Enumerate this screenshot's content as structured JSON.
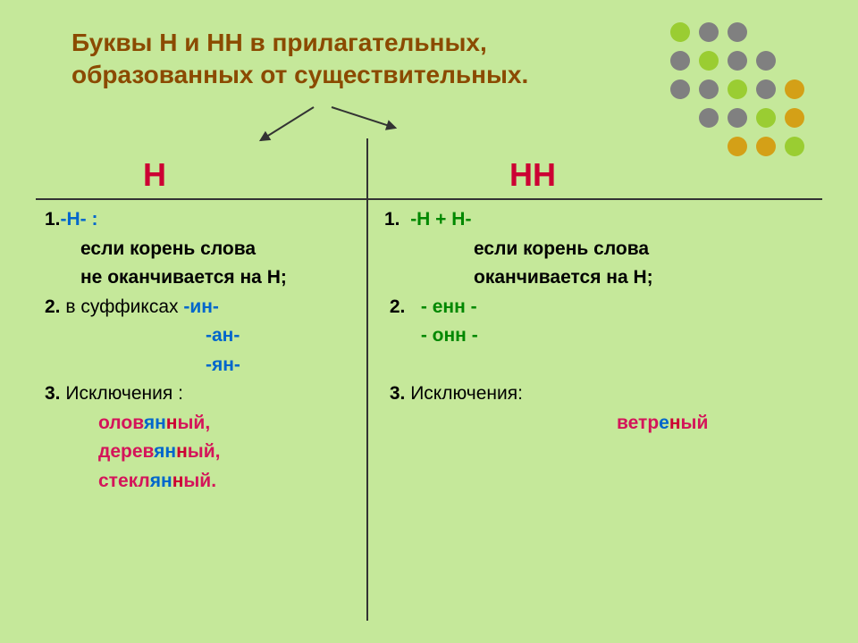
{
  "background_color": "#c5e89a",
  "title_line1": "Буквы Н и НН в прилагательных,",
  "title_line2": "образованных от существительных.",
  "title_color": "#8b4a00",
  "header_left": "Н",
  "header_right": "НН",
  "header_color": "#cc0033",
  "dots": [
    {
      "row": 0,
      "col": 0,
      "c": "#9acd32"
    },
    {
      "row": 0,
      "col": 1,
      "c": "#808080"
    },
    {
      "row": 0,
      "col": 2,
      "c": "#808080"
    },
    {
      "row": 1,
      "col": 0,
      "c": "#808080"
    },
    {
      "row": 1,
      "col": 1,
      "c": "#9acd32"
    },
    {
      "row": 1,
      "col": 2,
      "c": "#808080"
    },
    {
      "row": 1,
      "col": 3,
      "c": "#808080"
    },
    {
      "row": 2,
      "col": 0,
      "c": "#808080"
    },
    {
      "row": 2,
      "col": 1,
      "c": "#808080"
    },
    {
      "row": 2,
      "col": 2,
      "c": "#9acd32"
    },
    {
      "row": 2,
      "col": 3,
      "c": "#808080"
    },
    {
      "row": 2,
      "col": 4,
      "c": "#d4a017"
    },
    {
      "row": 3,
      "col": 1,
      "c": "#808080"
    },
    {
      "row": 3,
      "col": 2,
      "c": "#808080"
    },
    {
      "row": 3,
      "col": 3,
      "c": "#9acd32"
    },
    {
      "row": 3,
      "col": 4,
      "c": "#d4a017"
    },
    {
      "row": 4,
      "col": 2,
      "c": "#d4a017"
    },
    {
      "row": 4,
      "col": 3,
      "c": "#d4a017"
    },
    {
      "row": 4,
      "col": 4,
      "c": "#9acd32"
    }
  ],
  "left": {
    "r1_num": "1.",
    "r1_h": "-Н- :",
    "r1_a": "если корень слова",
    "r1_b": "не оканчивается на Н;",
    "r2_num": "2.",
    "r2_pre": " в суффиксах  ",
    "r2_s1": "-ин-",
    "r2_s2": "-ан-",
    "r2_s3": "-ян-",
    "r3_num": "3.",
    "r3_t": " Исключения :",
    "ex1_a": "олов",
    "ex1_b": "ян",
    "ex1_c": "н",
    "ex1_d": "ый,",
    "ex2_a": "дерев",
    "ex2_b": "ян",
    "ex2_c": "н",
    "ex2_d": "ый,",
    "ex3_a": "стекл",
    "ex3_b": "ян",
    "ex3_c": "н",
    "ex3_d": "ый."
  },
  "right": {
    "r1_num": "1.",
    "r1_h": "-Н + Н-",
    "r1_a": "если корень слова",
    "r1_b": "оканчивается на Н;",
    "r2_num": "2.",
    "r2_s1": "- енн -",
    "r2_s2": "- онн -",
    "r3_num": "3.",
    "r3_t": " Исключения:",
    "ex1_a": "ветр",
    "ex1_b": "е",
    "ex1_c": "н",
    "ex1_d": "ый"
  }
}
